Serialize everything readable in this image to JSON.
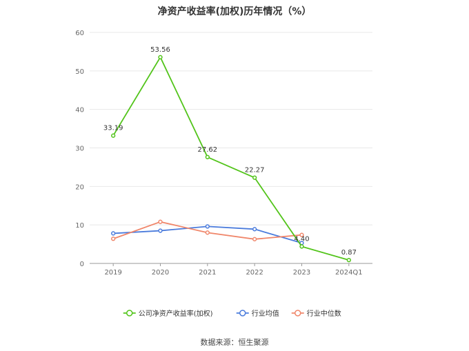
{
  "chart_data": {
    "type": "line",
    "title": "净资产收益率(加权)历年情况（%）",
    "categories": [
      "2019",
      "2020",
      "2021",
      "2022",
      "2023",
      "2024Q1"
    ],
    "ylim": [
      0,
      60
    ],
    "yticks": [
      0,
      10,
      20,
      30,
      40,
      50,
      60
    ],
    "grid": true,
    "legend_position": "bottom",
    "series": [
      {
        "name": "公司净资产收益率(加权)",
        "color": "#52c41a",
        "values": [
          33.19,
          53.56,
          27.62,
          22.27,
          4.4,
          0.87
        ],
        "labels": [
          "33.19",
          "53.56",
          "27.62",
          "22.27",
          "4.40",
          "0.87"
        ]
      },
      {
        "name": "行业均值",
        "color": "#4a7bdc",
        "values": [
          7.8,
          8.5,
          9.6,
          8.9,
          5.3,
          null
        ]
      },
      {
        "name": "行业中位数",
        "color": "#f0866a",
        "values": [
          6.4,
          10.8,
          8.0,
          6.3,
          7.4,
          null
        ]
      }
    ]
  },
  "source": "数据来源：恒生聚源"
}
